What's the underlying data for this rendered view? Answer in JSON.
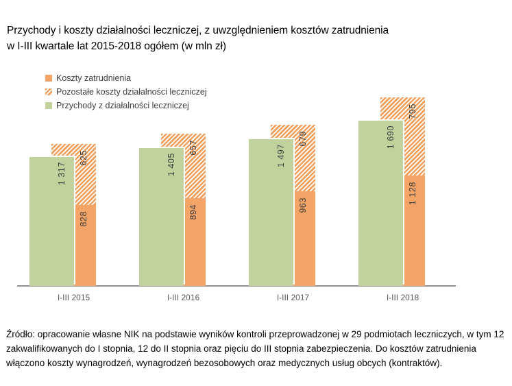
{
  "title": {
    "line1": "Przychody i koszty działalności leczniczej, z uwzględnieniem kosztów zatrudnienia",
    "line2": "w I-III kwartale lat 2015-2018 ogółem (w mln zł)"
  },
  "legend": [
    {
      "label": "Koszty zatrudnienia",
      "swatch": "solid-orange"
    },
    {
      "label": "Pozostałe koszty działalności leczniczej",
      "swatch": "hatched-orange"
    },
    {
      "label": "Przychody z działalności leczniczej",
      "swatch": "solid-green"
    }
  ],
  "colors": {
    "orange": "#f4a466",
    "green": "#c2d29c",
    "hatch_stripe": "#f0a162",
    "hatch_background": "#fffdf8",
    "axis": "#919191",
    "value_label": "#3d3d3d",
    "x_tick_label": "#595959"
  },
  "chart_data": {
    "type": "bar",
    "title": "Przychody i koszty działalności leczniczej, z uwzględnieniem kosztów zatrudnienia w I-III kwartale lat 2015-2018 ogółem (w mln zł)",
    "categories": [
      "I-III 2015",
      "I-III 2016",
      "I-III 2017",
      "I-III 2018"
    ],
    "series": [
      {
        "name": "Przychody z działalności leczniczej",
        "role": "overlapped-front-column",
        "color": "solid-green",
        "values": [
          1317,
          1405,
          1497,
          1690
        ],
        "labels": [
          "1 317",
          "1 405",
          "1 497",
          "1 690"
        ]
      },
      {
        "name": "Koszty zatrudnienia",
        "role": "stacked-bottom-segment",
        "color": "solid-orange",
        "values": [
          828,
          894,
          963,
          1128
        ],
        "labels": [
          "828",
          "894",
          "963",
          "1 128"
        ]
      },
      {
        "name": "Pozostałe koszty działalności leczniczej",
        "role": "stacked-top-segment",
        "color": "hatched-orange",
        "values": [
          625,
          657,
          679,
          795
        ],
        "labels": [
          "625",
          "657",
          "679",
          "795"
        ]
      }
    ],
    "xlabel": "",
    "ylabel": "",
    "unit": "mln zł",
    "ylim": [
      0,
      2000
    ],
    "grid": false,
    "y_axis_visible": false,
    "legend_position": "top-left",
    "value_labels_rotation": "vertical-bottom-to-top"
  },
  "source_note": "Źródło: opracowanie własne NIK na podstawie wyników kontroli przeprowadzonej w 29 podmiotach leczniczych, w tym 12 zakwalifikowanych do I stopnia, 12 do II stopnia oraz pięciu do III stopnia zabezpieczenia. Do kosztów zatrudnienia włączono koszty wynagrodzeń, wynagrodzeń bezosobowych oraz medycznych usług obcych (kontraktów)."
}
